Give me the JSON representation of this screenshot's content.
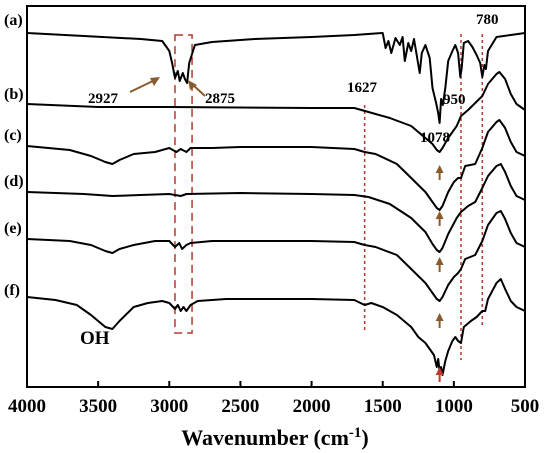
{
  "chart_data": {
    "type": "line",
    "title": "",
    "xlabel": "Wavenumber (cm",
    "xlabel_sup": "-1",
    "xlabel_close": ")",
    "ylabel": "",
    "xlim": [
      4000,
      500
    ],
    "x_reversed": true,
    "grid": false,
    "x_ticks": [
      "4000",
      "3500",
      "3000",
      "2500",
      "2000",
      "1500",
      "1000",
      "500"
    ],
    "tick_values": [
      4000,
      3500,
      3000,
      2500,
      2000,
      1500,
      1000,
      500
    ],
    "trace_labels": [
      "(a)",
      "(b)",
      "(c)",
      "(d)",
      "(e)",
      "(f)"
    ],
    "annotations": {
      "oh": "OH",
      "w2927": "2927",
      "w2875": "2875",
      "w1627": "1627",
      "w1078": "1078",
      "w950": "950",
      "w780": "780"
    },
    "marker_lines": [
      2960,
      2840,
      1627,
      1100,
      950,
      800
    ],
    "colors": {
      "trace": "#000000",
      "marker": "#b03a2e",
      "arrow": "#8b5a2b",
      "arrow_red": "#c0392b"
    }
  }
}
